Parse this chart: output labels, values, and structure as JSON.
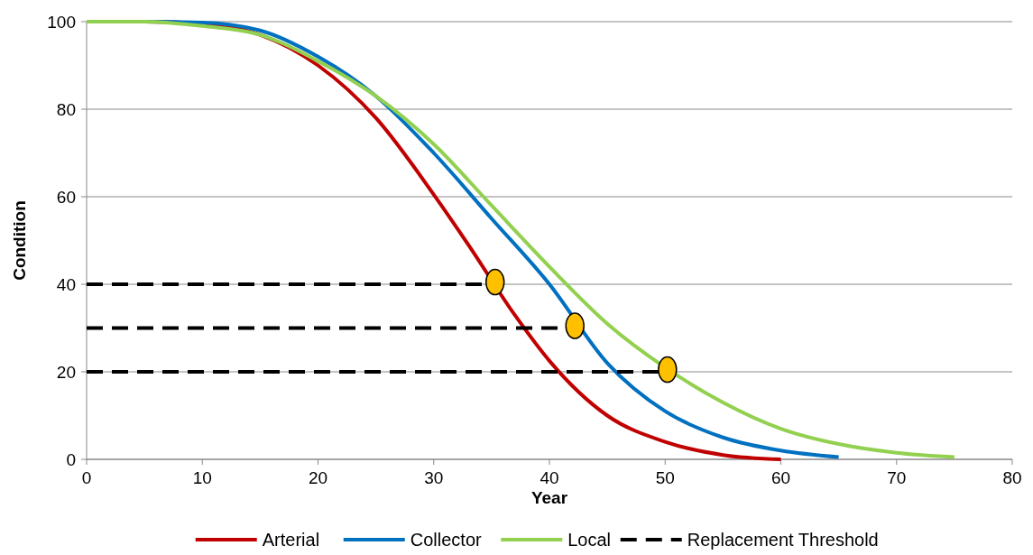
{
  "chart_data": {
    "type": "line",
    "xlabel": "Year",
    "ylabel": "Condition",
    "xlim": [
      0,
      80
    ],
    "ylim": [
      0,
      100
    ],
    "xticks": [
      0,
      10,
      20,
      30,
      40,
      50,
      60,
      70,
      80
    ],
    "yticks": [
      0,
      20,
      40,
      60,
      80,
      100
    ],
    "grid": "y",
    "legend": "bottom",
    "line_style": "solid",
    "series": [
      {
        "name": "Arterial",
        "color": "#c00000",
        "x": [
          0,
          5,
          10,
          15,
          20,
          25,
          30,
          33,
          37,
          40,
          45,
          50,
          55,
          60
        ],
        "values": [
          100,
          100,
          99.5,
          97,
          90,
          78,
          60.5,
          49,
          33,
          22.5,
          10,
          4,
          1,
          0
        ]
      },
      {
        "name": "Collector",
        "color": "#0070c0",
        "x": [
          0,
          5,
          10,
          15,
          20,
          25,
          30,
          35,
          40,
          45,
          50,
          55,
          60,
          65
        ],
        "values": [
          100,
          100,
          99.8,
          98,
          92,
          83,
          70,
          55,
          40,
          22,
          11,
          5,
          2,
          0.5
        ]
      },
      {
        "name": "Local",
        "color": "#92d050",
        "x": [
          0,
          5,
          10,
          15,
          20,
          25,
          30,
          35,
          40,
          45,
          50,
          55,
          60,
          65,
          70,
          75
        ],
        "values": [
          100,
          100,
          99,
          97,
          91,
          83,
          72,
          58,
          44,
          31,
          21,
          13,
          7,
          3.5,
          1.5,
          0.5
        ]
      },
      {
        "name": "Replacement Threshold",
        "color": "#000000",
        "line_style": "dashed",
        "x": [
          0,
          35.3
        ],
        "values": [
          40,
          40
        ]
      },
      {
        "color": "#000000",
        "line_style": "dashed",
        "x": [
          0,
          42.2
        ],
        "values": [
          30,
          30
        ]
      },
      {
        "color": "#000000",
        "line_style": "dashed",
        "x": [
          0,
          50.2
        ],
        "values": [
          20,
          20
        ]
      },
      {
        "type": "scatter",
        "color": "#ffc000",
        "marker": "circle",
        "x": [
          35.3,
          42.2,
          50.2
        ],
        "values": [
          40.5,
          30.5,
          20.5
        ]
      }
    ]
  }
}
